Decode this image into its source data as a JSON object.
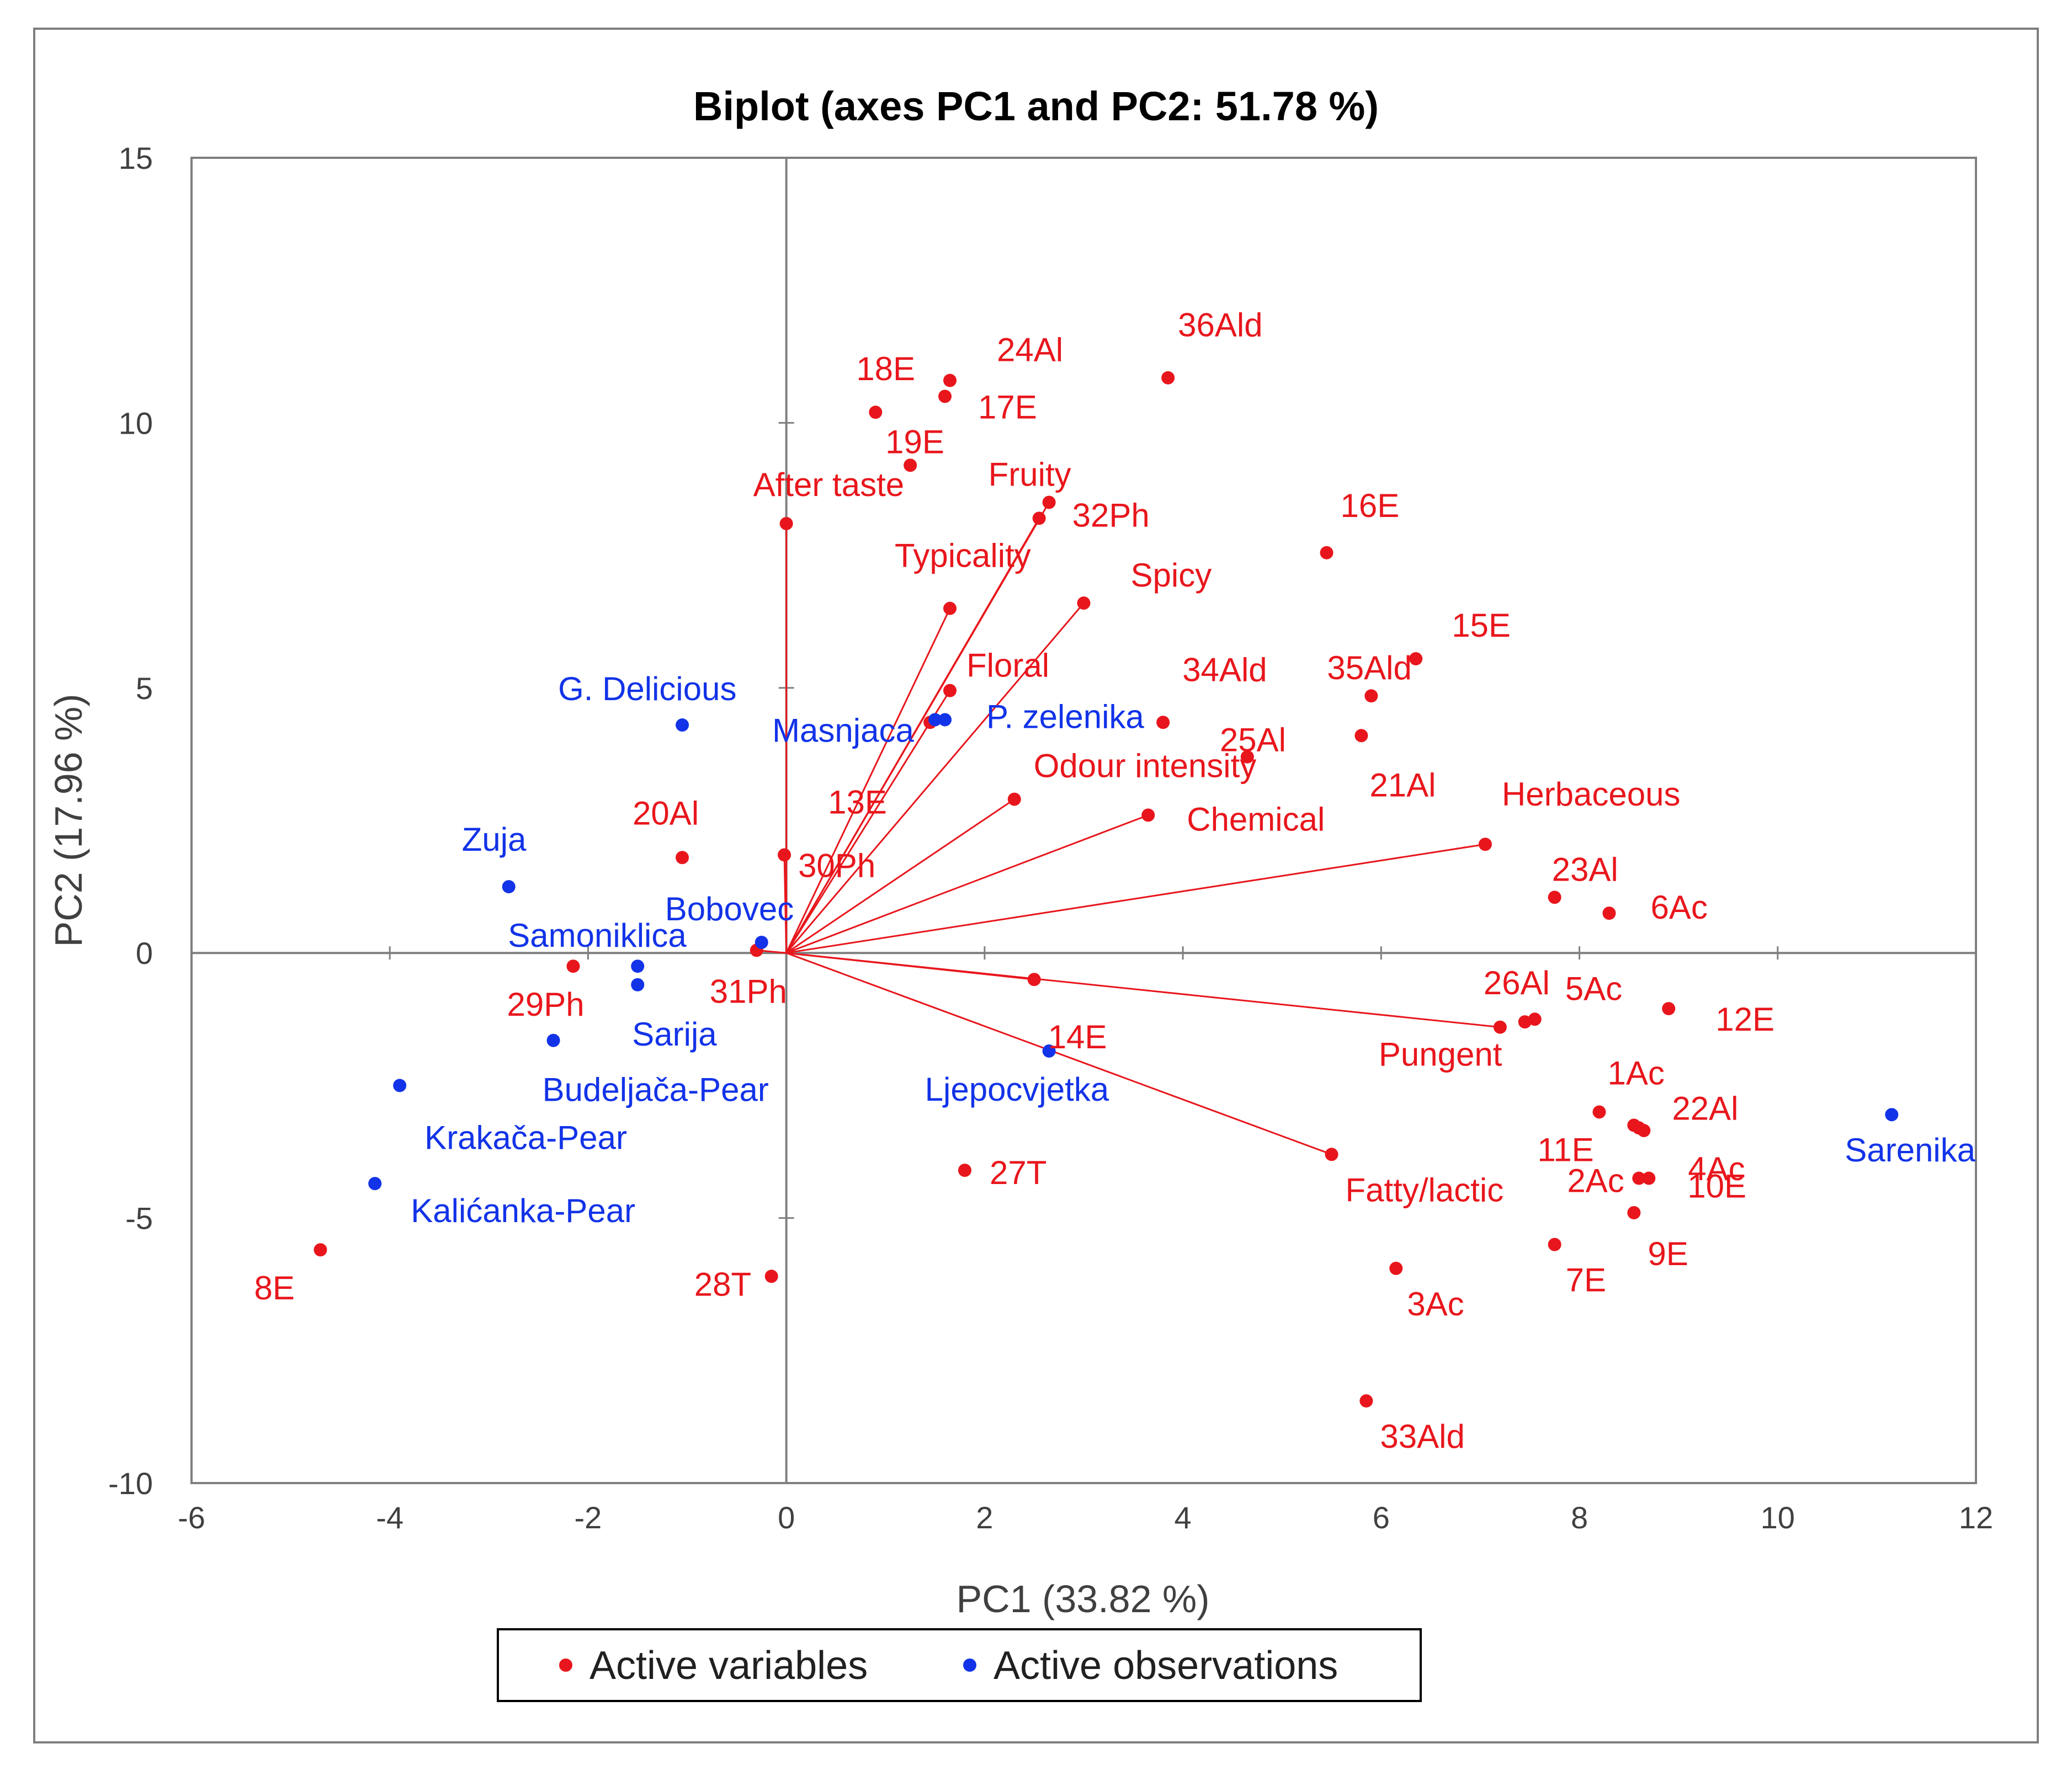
{
  "chart_data": {
    "type": "scatter",
    "title": "Biplot (axes PC1 and PC2: 51.78 %)",
    "xlabel": "PC1 (33.82 %)",
    "ylabel": "PC2 (17.96 %)",
    "xlim": [
      -6,
      12
    ],
    "ylim": [
      -10,
      15
    ],
    "xticks": [
      -6,
      -4,
      -2,
      0,
      2,
      4,
      6,
      8,
      10,
      12
    ],
    "yticks": [
      -10,
      -5,
      0,
      5,
      10,
      15
    ],
    "grid": false,
    "legend_position": "bottom",
    "colors": {
      "variables": "#e8161c",
      "observations": "#1233e8",
      "axes": "#7f7f7f"
    },
    "series": [
      {
        "name": "Active variables",
        "vectors_from_origin": true,
        "points": [
          {
            "label": "After taste",
            "x": 0.0,
            "y": 8.1,
            "vector": true
          },
          {
            "label": "Fruity",
            "x": 2.65,
            "y": 8.5,
            "vector": true
          },
          {
            "label": "32Ph",
            "x": 2.55,
            "y": 8.2,
            "vector": true
          },
          {
            "label": "Typicality",
            "x": 1.65,
            "y": 6.5,
            "vector": true
          },
          {
            "label": "Spicy",
            "x": 3.0,
            "y": 6.6,
            "vector": true
          },
          {
            "label": "Floral",
            "x": 1.65,
            "y": 4.95,
            "vector": true
          },
          {
            "label": "Odour intensity",
            "x": 2.3,
            "y": 2.9,
            "vector": true
          },
          {
            "label": "Chemical",
            "x": 3.65,
            "y": 2.6,
            "vector": true
          },
          {
            "label": "Herbaceous",
            "x": 7.05,
            "y": 2.05,
            "vector": true
          },
          {
            "label": "30Ph",
            "x": -0.02,
            "y": 1.85,
            "vector": true
          },
          {
            "label": "31Ph",
            "x": -0.3,
            "y": 0.05,
            "vector": true
          },
          {
            "label": "14E",
            "x": 2.5,
            "y": -0.5,
            "vector": true
          },
          {
            "label": "Pungent",
            "x": 7.2,
            "y": -1.4,
            "vector": true
          },
          {
            "label": "Fatty/lactic",
            "x": 5.5,
            "y": -3.8,
            "vector": true
          },
          {
            "label": "36Ald",
            "x": 3.85,
            "y": 10.85
          },
          {
            "label": "24Al",
            "x": 1.65,
            "y": 10.8
          },
          {
            "label": "18E",
            "x": 0.9,
            "y": 10.2
          },
          {
            "label": "17E",
            "x": 1.6,
            "y": 10.5
          },
          {
            "label": "19E",
            "x": 1.25,
            "y": 9.2
          },
          {
            "label": "16E",
            "x": 5.45,
            "y": 7.55
          },
          {
            "label": "15E",
            "x": 6.35,
            "y": 5.55
          },
          {
            "label": "13E",
            "x": 1.45,
            "y": 4.35
          },
          {
            "label": "34Ald",
            "x": 3.8,
            "y": 4.35
          },
          {
            "label": "35Ald",
            "x": 5.9,
            "y": 4.85
          },
          {
            "label": "25Al",
            "x": 4.65,
            "y": 3.7
          },
          {
            "label": "21Al",
            "x": 5.8,
            "y": 4.1
          },
          {
            "label": "20Al",
            "x": -1.05,
            "y": 1.8
          },
          {
            "label": "23Al",
            "x": 7.75,
            "y": 1.05
          },
          {
            "label": "6Ac",
            "x": 8.3,
            "y": 0.75
          },
          {
            "label": "29Ph",
            "x": -2.15,
            "y": -0.25
          },
          {
            "label": "26Al",
            "x": 7.45,
            "y": -1.3
          },
          {
            "label": "5Ac",
            "x": 7.55,
            "y": -1.25
          },
          {
            "label": "12E",
            "x": 8.9,
            "y": -1.05
          },
          {
            "label": "1Ac",
            "x": 8.2,
            "y": -3.0
          },
          {
            "label": "11E",
            "x": 8.55,
            "y": -3.25
          },
          {
            "label": "22Al",
            "x": 8.6,
            "y": -3.3
          },
          {
            "label": "4Ac",
            "x": 8.65,
            "y": -3.35
          },
          {
            "label": "2Ac",
            "x": 8.6,
            "y": -4.25
          },
          {
            "label": "10E",
            "x": 8.7,
            "y": -4.25
          },
          {
            "label": "9E",
            "x": 8.55,
            "y": -4.9
          },
          {
            "label": "7E",
            "x": 7.75,
            "y": -5.5
          },
          {
            "label": "3Ac",
            "x": 6.15,
            "y": -5.95
          },
          {
            "label": "33Ald",
            "x": 5.85,
            "y": -8.45
          },
          {
            "label": "27T",
            "x": 1.8,
            "y": -4.1
          },
          {
            "label": "28T",
            "x": -0.15,
            "y": -6.1
          },
          {
            "label": "8E",
            "x": -4.7,
            "y": -5.6
          }
        ]
      },
      {
        "name": "Active observations",
        "points": [
          {
            "label": "G. Delicious",
            "x": -1.05,
            "y": 4.3
          },
          {
            "label": "Masnjaca",
            "x": 1.5,
            "y": 4.4
          },
          {
            "label": "P. zelenika",
            "x": 1.6,
            "y": 4.4
          },
          {
            "label": "Zuja",
            "x": -2.8,
            "y": 1.25
          },
          {
            "label": "Bobovec",
            "x": -0.25,
            "y": 0.2
          },
          {
            "label": "Samoniklica",
            "x": -1.5,
            "y": -0.25
          },
          {
            "label": "Sarija",
            "x": -1.5,
            "y": -0.6
          },
          {
            "label": "Budeljača-Pear",
            "x": -2.35,
            "y": -1.65
          },
          {
            "label": "Ljepocvjetka",
            "x": 2.65,
            "y": -1.85
          },
          {
            "label": "Krakača-Pear",
            "x": -3.9,
            "y": -2.5
          },
          {
            "label": "Kalićanka-Pear",
            "x": -4.15,
            "y": -4.35
          },
          {
            "label": "Sarenika",
            "x": 11.15,
            "y": -3.05
          }
        ]
      }
    ]
  }
}
